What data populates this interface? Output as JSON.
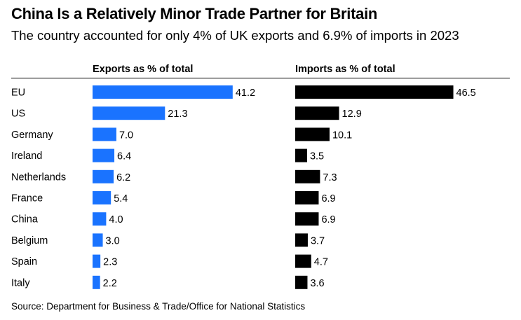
{
  "title": "China Is a Relatively Minor Trade Partner for Britain",
  "subtitle": "The country accounted for only 4% of UK exports and 6.9% of imports in 2023",
  "source": "Source: Department for Business & Trade/Office for National Statistics",
  "colors": {
    "exports": "#1a73ff",
    "imports": "#000000",
    "text": "#000000"
  },
  "chart_data": {
    "type": "bar",
    "categories": [
      "EU",
      "US",
      "Germany",
      "Ireland",
      "Netherlands",
      "France",
      "China",
      "Belgium",
      "Spain",
      "Italy"
    ],
    "series": [
      {
        "name": "Exports as % of total",
        "values": [
          41.2,
          21.3,
          7.0,
          6.4,
          6.2,
          5.4,
          4.0,
          3.0,
          2.3,
          2.2
        ],
        "labels": [
          "41.2",
          "21.3",
          "7.0",
          "6.4",
          "6.2",
          "5.4",
          "4.0",
          "3.0",
          "2.3",
          "2.2"
        ]
      },
      {
        "name": "Imports as % of total",
        "values": [
          46.5,
          12.9,
          10.1,
          3.5,
          7.3,
          6.9,
          6.9,
          3.7,
          4.7,
          3.6
        ],
        "labels": [
          "46.5",
          "12.9",
          "10.1",
          "3.5",
          "7.3",
          "6.9",
          "6.9",
          "3.7",
          "4.7",
          "3.6"
        ]
      }
    ]
  }
}
